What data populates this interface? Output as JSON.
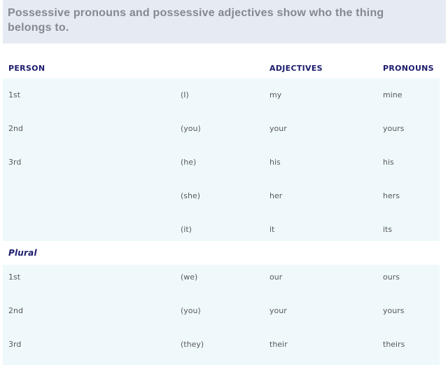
{
  "header": {
    "title": "Possessive pronouns and possessive adjectives show who the thing belongs to."
  },
  "table": {
    "columns": {
      "person": "PERSON",
      "adjectives": "ADJECTIVES",
      "pronouns": "PRONOUNS"
    },
    "singular_rows": [
      {
        "person": "1st",
        "subject": "(I)",
        "adjective": "my",
        "pronoun": "mine"
      },
      {
        "person": "2nd",
        "subject": "(you)",
        "adjective": "your",
        "pronoun": "yours"
      },
      {
        "person": "3rd",
        "subject": "(he)",
        "adjective": "his",
        "pronoun": "his"
      },
      {
        "person": "",
        "subject": "(she)",
        "adjective": "her",
        "pronoun": "hers"
      },
      {
        "person": "",
        "subject": "(it)",
        "adjective": "it",
        "pronoun": "its"
      }
    ],
    "plural_label": "Plural",
    "plural_rows": [
      {
        "person": "1st",
        "subject": "(we)",
        "adjective": "our",
        "pronoun": "ours"
      },
      {
        "person": "2nd",
        "subject": "(you)",
        "adjective": "your",
        "pronoun": "yours"
      },
      {
        "person": "3rd",
        "subject": "(they)",
        "adjective": "their",
        "pronoun": "theirs"
      }
    ]
  },
  "colors": {
    "banner_background": "#e6ebf3",
    "banner_text": "#85898f",
    "table_background": "#eff9fc",
    "header_navy": "#1c1c6e",
    "body_text": "#58595b"
  }
}
